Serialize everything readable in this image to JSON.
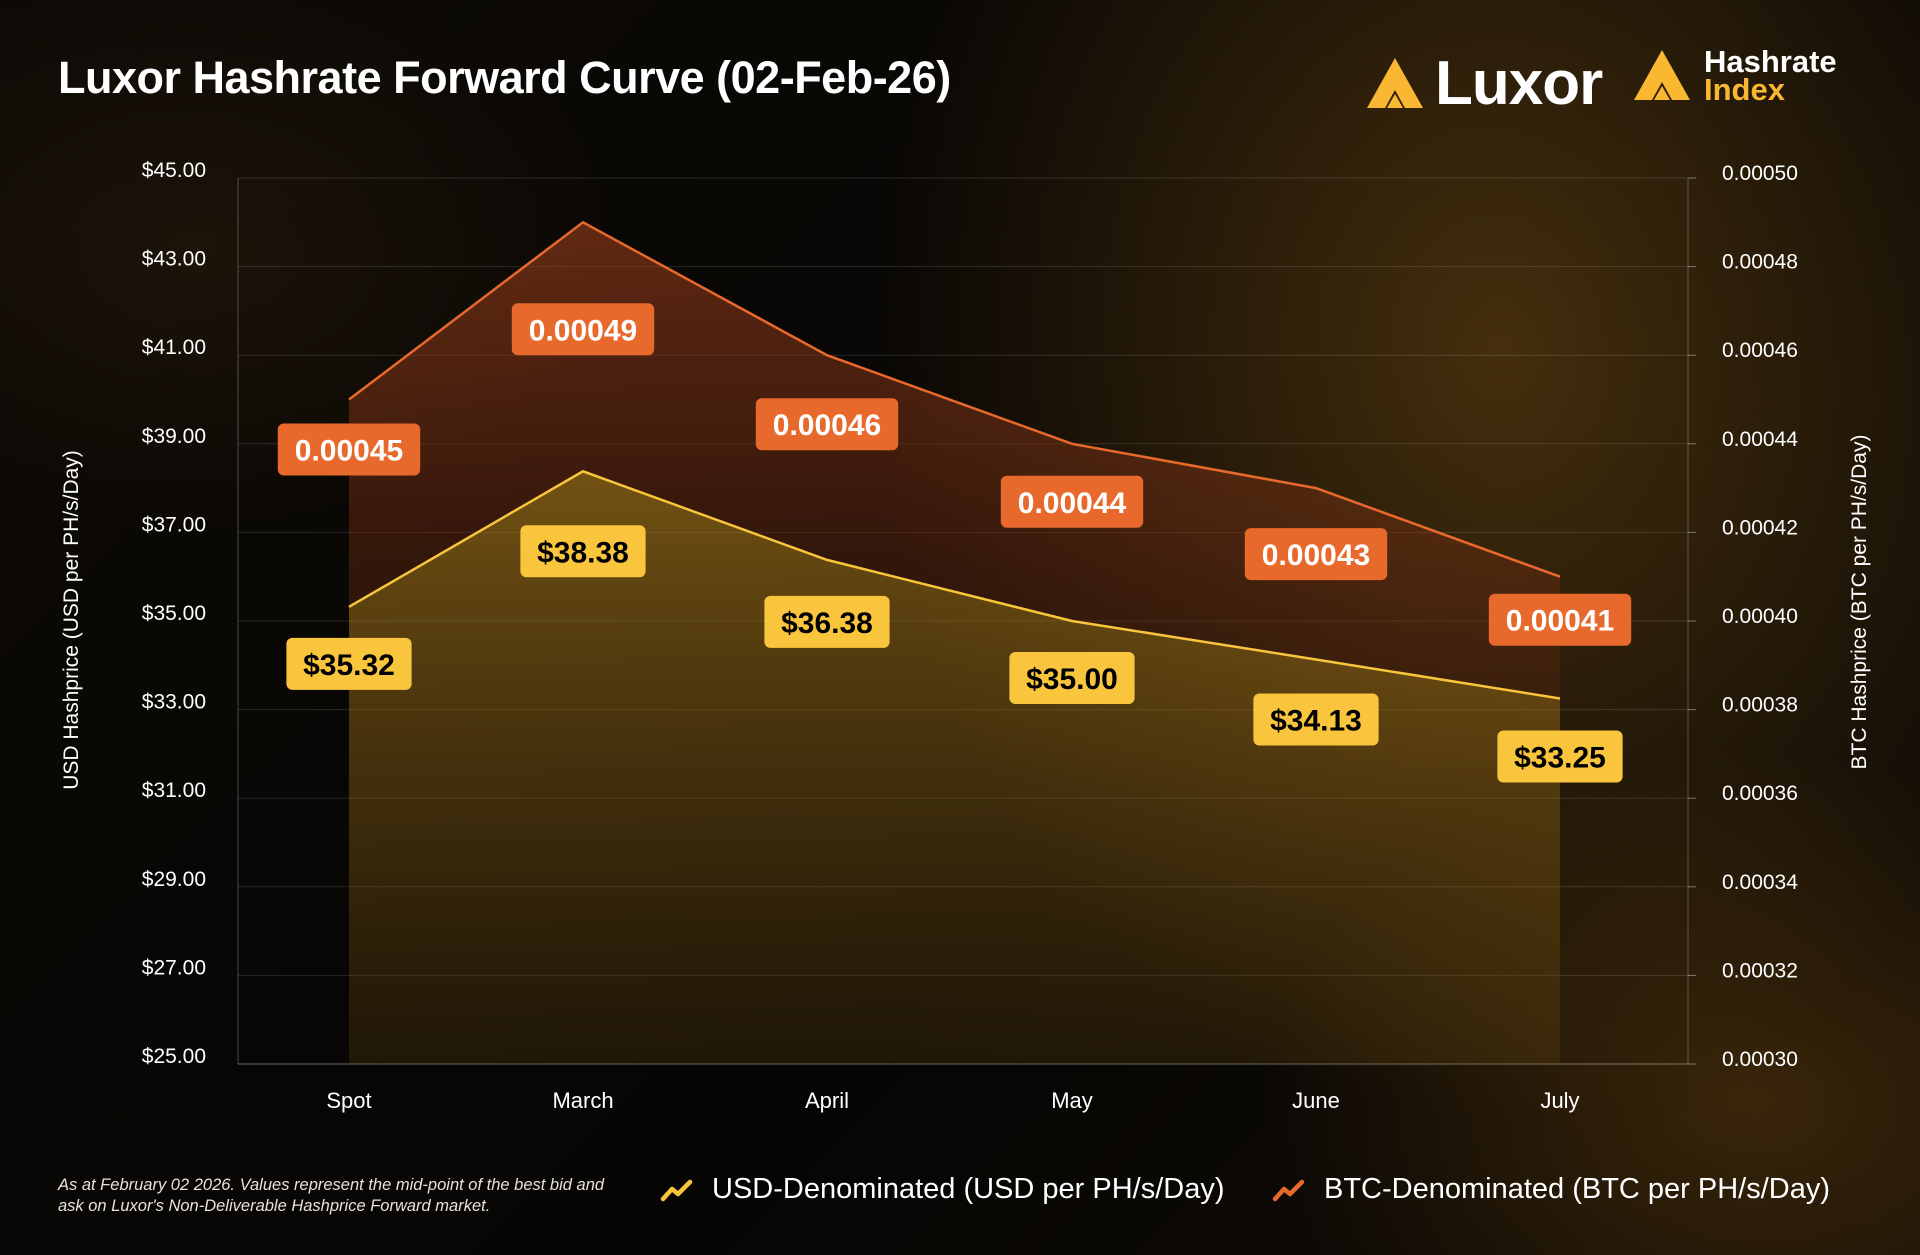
{
  "header": {
    "title": "Luxor Hashrate Forward Curve (02-Feb-26)",
    "brand_luxor": "Luxor",
    "brand_hashrate": "Hashrate",
    "brand_index": "Index"
  },
  "colors": {
    "usd": "#f9c53d",
    "btc": "#e8692c",
    "usd_label_text": "#000000",
    "btc_label_text": "#ffffff"
  },
  "chart_data": {
    "type": "line",
    "title": "Luxor Hashrate Forward Curve (02-Feb-26)",
    "categories": [
      "Spot",
      "March",
      "April",
      "May",
      "June",
      "July"
    ],
    "ylabel_left": "USD Hashprice (USD per PH/s/Day)",
    "ylabel_right": "BTC Hashprice (BTC per PH/s/Day)",
    "ylim_left": [
      25,
      45
    ],
    "ylim_right": [
      0.0003,
      0.0005
    ],
    "left_ticks": [
      "$45.00",
      "$43.00",
      "$41.00",
      "$39.00",
      "$37.00",
      "$35.00",
      "$33.00",
      "$31.00",
      "$29.00",
      "$27.00",
      "$25.00"
    ],
    "right_ticks": [
      "0.00050",
      "0.00048",
      "0.00046",
      "0.00044",
      "0.00042",
      "0.00040",
      "0.00038",
      "0.00036",
      "0.00034",
      "0.00032",
      "0.00030"
    ],
    "series": [
      {
        "name": "USD-Denominated (USD per PH/s/Day)",
        "axis": "left",
        "values": [
          35.32,
          38.38,
          36.38,
          35.0,
          34.13,
          33.25
        ],
        "labels": [
          "$35.32",
          "$38.38",
          "$36.38",
          "$35.00",
          "$34.13",
          "$33.25"
        ]
      },
      {
        "name": "BTC-Denominated (BTC per PH/s/Day)",
        "axis": "right",
        "values": [
          0.00045,
          0.00049,
          0.00046,
          0.00044,
          0.00043,
          0.00041
        ],
        "labels": [
          "0.00045",
          "0.00049",
          "0.00046",
          "0.00044",
          "0.00043",
          "0.00041"
        ]
      }
    ]
  },
  "legend": {
    "usd": "USD-Denominated (USD per PH/s/Day)",
    "btc": "BTC-Denominated (BTC per PH/s/Day)"
  },
  "footnote": "As at February 02 2026. Values represent the mid-point of the best bid and ask on Luxor's Non-Deliverable Hashprice Forward market."
}
